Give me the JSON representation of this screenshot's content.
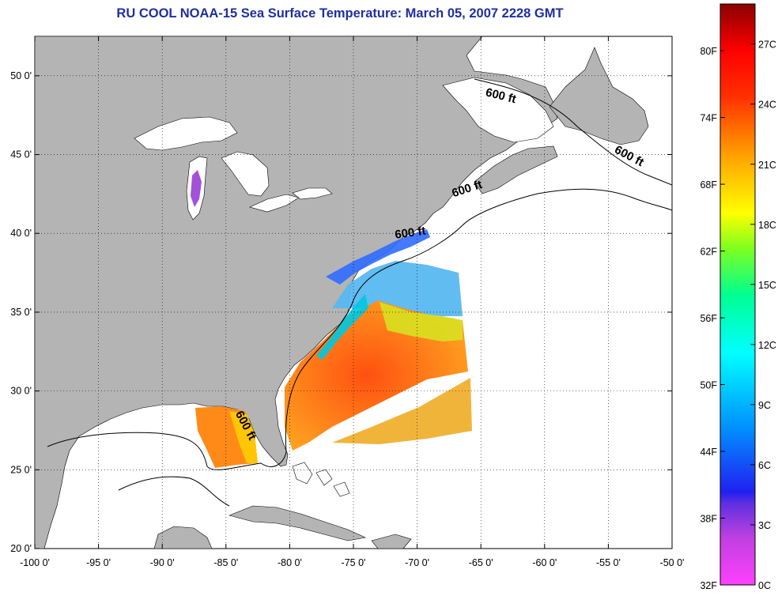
{
  "title": "RU COOL  NOAA-15  Sea Surface Temperature:  March 05, 2007 2228 GMT",
  "map": {
    "lon_range": [
      -100,
      -50
    ],
    "lat_range": [
      20,
      52.5
    ],
    "lon_ticks": [
      {
        "v": -100,
        "label": "-100 0'"
      },
      {
        "v": -95,
        "label": "-95 0'"
      },
      {
        "v": -90,
        "label": "-90 0'"
      },
      {
        "v": -85,
        "label": "-85 0'"
      },
      {
        "v": -80,
        "label": "-80 0'"
      },
      {
        "v": -75,
        "label": "-75 0'"
      },
      {
        "v": -70,
        "label": "-70 0'"
      },
      {
        "v": -65,
        "label": "-65 0'"
      },
      {
        "v": -60,
        "label": "-60 0'"
      },
      {
        "v": -55,
        "label": "-55 0'"
      },
      {
        "v": -50,
        "label": "-50 0'"
      }
    ],
    "lat_ticks": [
      {
        "v": 20,
        "label": "20 0'"
      },
      {
        "v": 25,
        "label": "25 0'"
      },
      {
        "v": 30,
        "label": "30 0'"
      },
      {
        "v": 35,
        "label": "35 0'"
      },
      {
        "v": 40,
        "label": "40 0'"
      },
      {
        "v": 45,
        "label": "45 0'"
      },
      {
        "v": 50,
        "label": "50 0'"
      }
    ],
    "grid": "dotted",
    "contour_label": "600 ft",
    "contour_labels": [
      {
        "lon": -83.7,
        "lat": 27.7,
        "angle": 62
      },
      {
        "lon": -63.5,
        "lat": 48.5,
        "angle": 14
      },
      {
        "lon": -53.5,
        "lat": 44.7,
        "angle": 28
      },
      {
        "lon": -66.0,
        "lat": 42.6,
        "angle": -18
      },
      {
        "lon": -70.5,
        "lat": 39.8,
        "angle": -8
      }
    ],
    "colors": {
      "land": "#b4b4b4",
      "ocean": "#ffffff",
      "shelf_line": "#000000"
    }
  },
  "colorbar": {
    "min_c": 0,
    "max_c": 29,
    "fahrenheit_labels": [
      "80F",
      "74F",
      "68F",
      "62F",
      "56F",
      "50F",
      "44F",
      "38F",
      "32F"
    ],
    "fahrenheit_values": [
      80,
      74,
      68,
      62,
      56,
      50,
      44,
      38,
      32
    ],
    "celsius_labels": [
      "27C",
      "24C",
      "21C",
      "18C",
      "15C",
      "12C",
      "9C",
      "6C",
      "3C",
      "0C"
    ],
    "celsius_values": [
      27,
      24,
      21,
      18,
      15,
      12,
      9,
      6,
      3,
      0
    ],
    "palette": [
      "#ff00ff",
      "#b040d0",
      "#3030ff",
      "#00a0ff",
      "#00ffff",
      "#00ff80",
      "#c0ff00",
      "#ffff00",
      "#ffb000",
      "#ff5000",
      "#ff0000",
      "#900000"
    ]
  }
}
